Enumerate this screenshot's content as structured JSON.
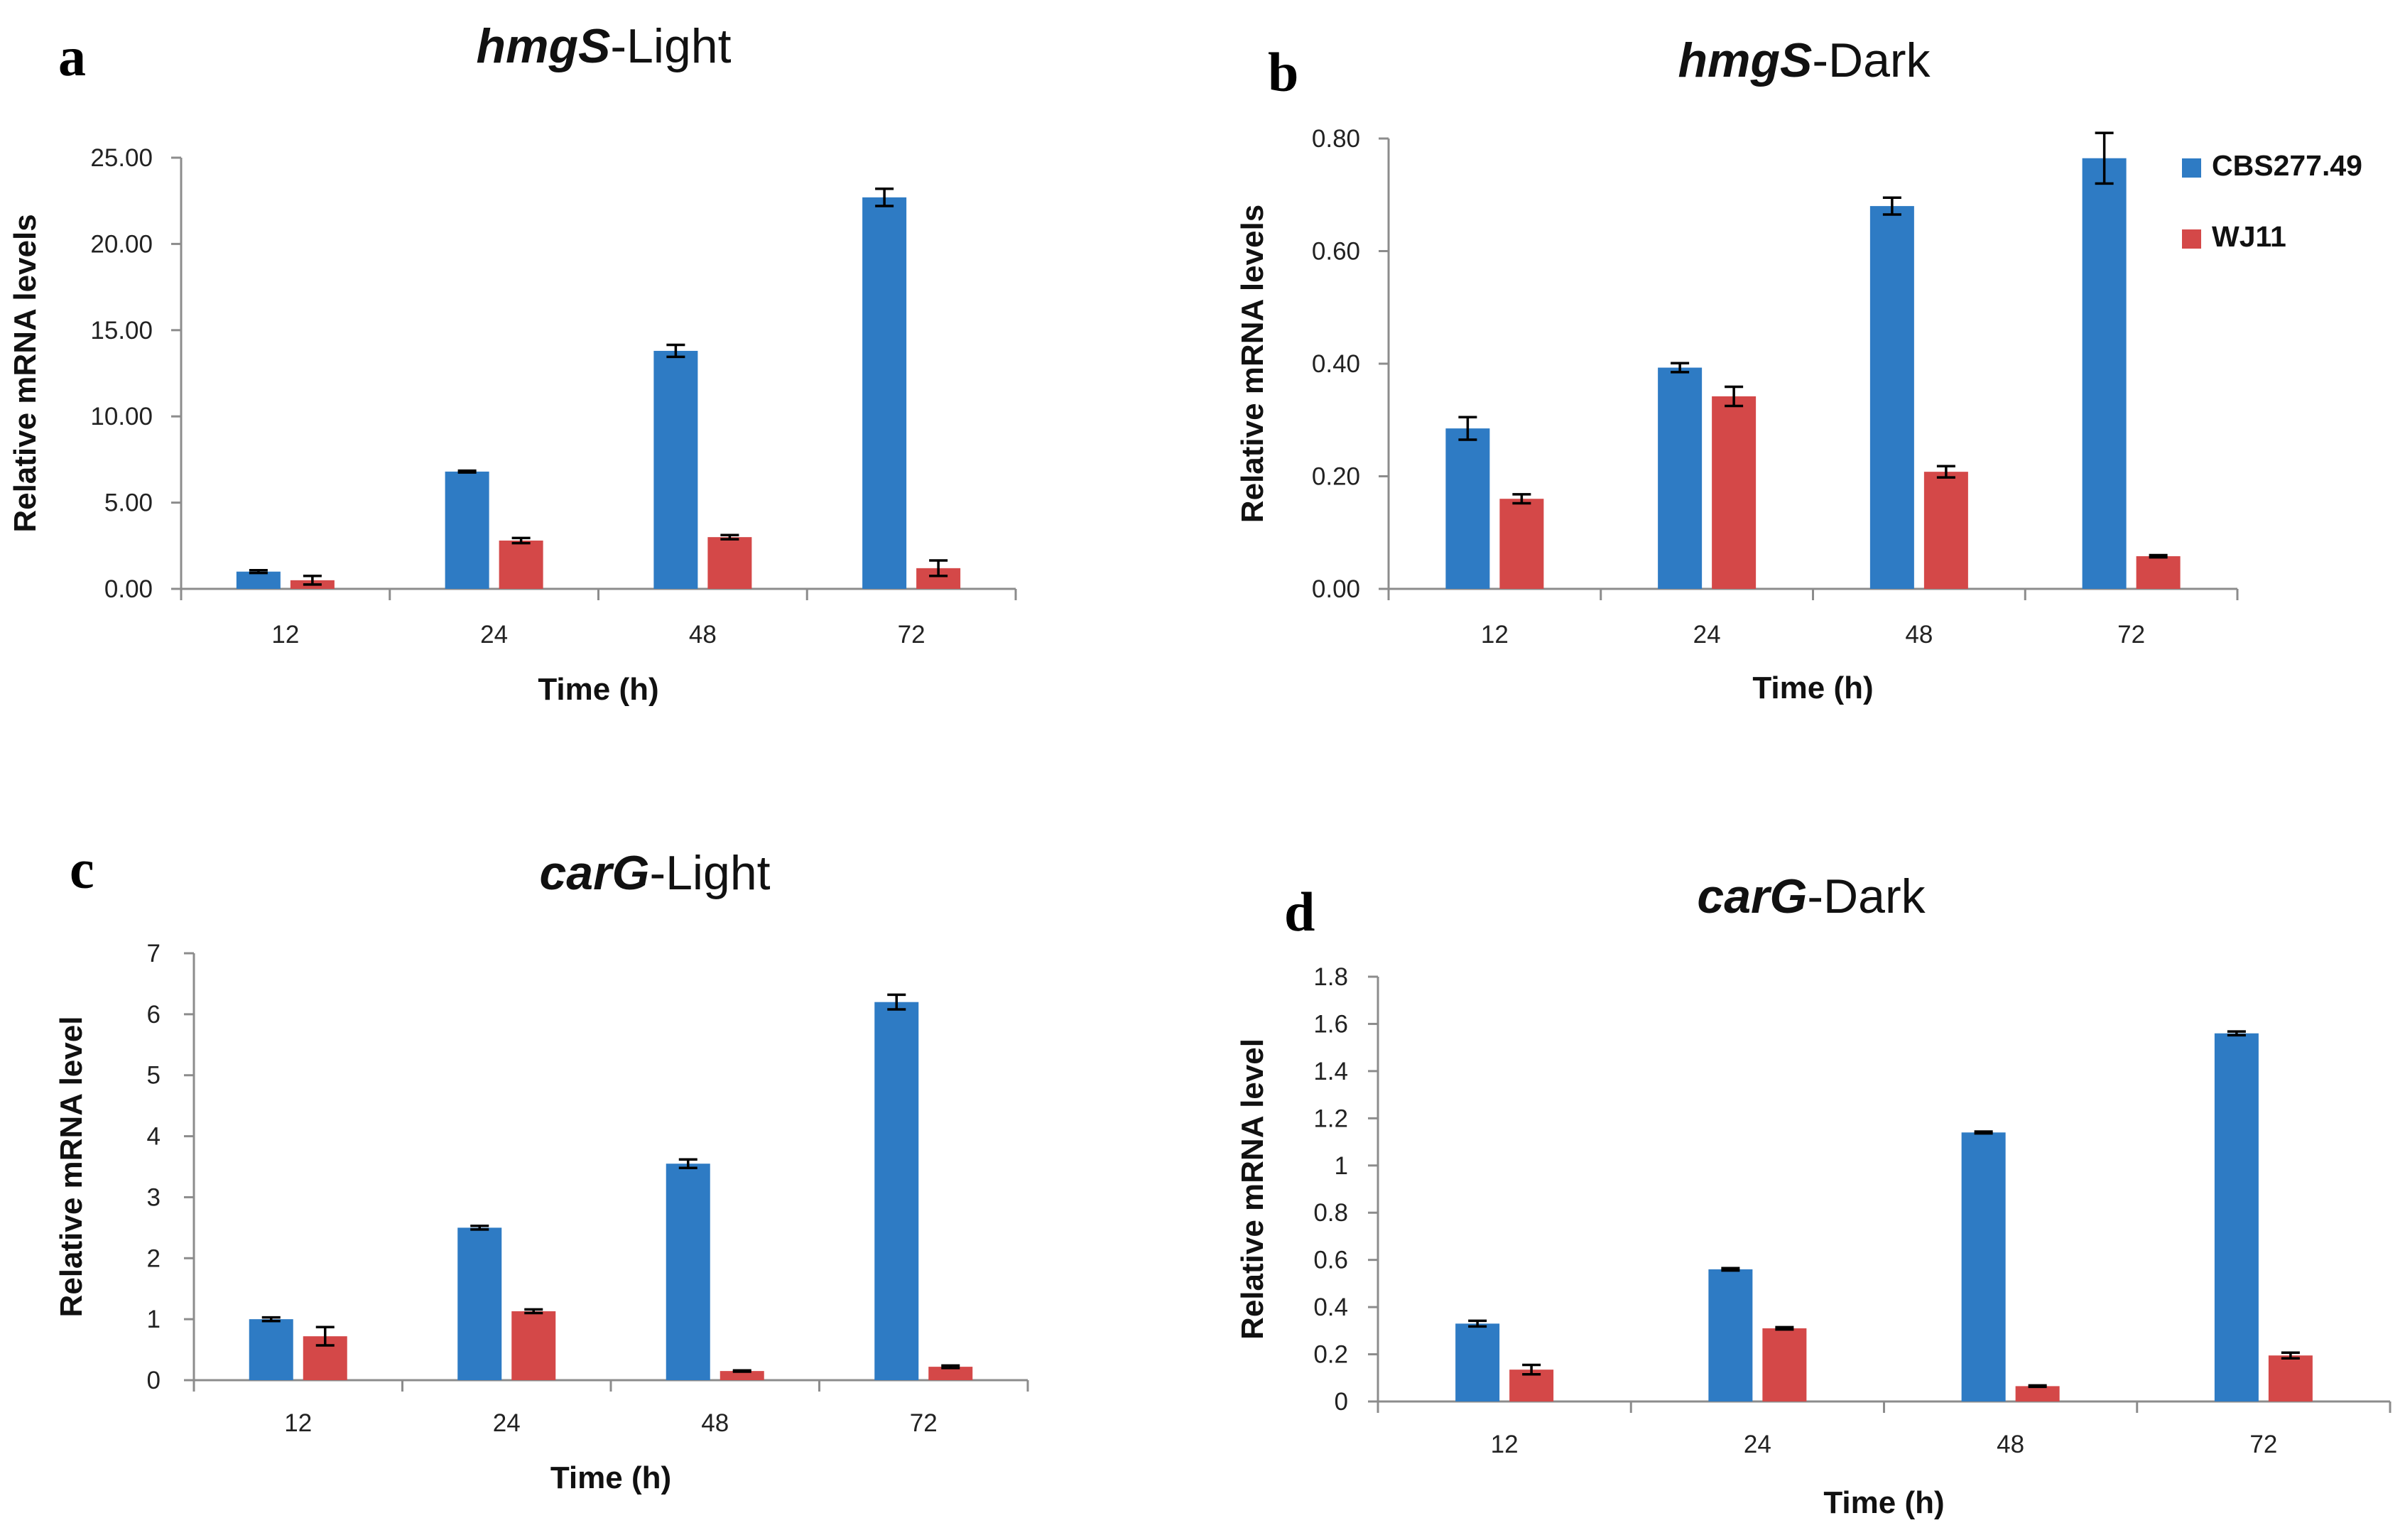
{
  "colors": {
    "series_1": "#2e7bc4",
    "series_2": "#d44848",
    "axis": "#8c8c8c",
    "errorbar": "#000000"
  },
  "legend": {
    "items": [
      "CBS277.49",
      "WJ11"
    ],
    "position": "top-right of panel b"
  },
  "chart_data": [
    {
      "type": "bar",
      "panel_letter": "a",
      "title_italic": "hmgS",
      "title_rest": "-Light",
      "xlabel": "Time (h)",
      "ylabel": "Relative mRNA levels",
      "categories": [
        "12",
        "24",
        "48",
        "72"
      ],
      "ylim": [
        0,
        25
      ],
      "yticks": [
        "0.00",
        "5.00",
        "10.00",
        "15.00",
        "20.00",
        "25.00"
      ],
      "series": [
        {
          "name": "CBS277.49",
          "values": [
            1.0,
            6.8,
            13.8,
            22.7
          ],
          "errors": [
            0.08,
            0.05,
            0.35,
            0.5
          ]
        },
        {
          "name": "WJ11",
          "values": [
            0.5,
            2.8,
            3.0,
            1.2
          ],
          "errors": [
            0.25,
            0.15,
            0.12,
            0.45
          ]
        }
      ]
    },
    {
      "type": "bar",
      "panel_letter": "b",
      "title_italic": "hmgS",
      "title_rest": "-Dark",
      "xlabel": "Time (h)",
      "ylabel": "Relative mRNA levels",
      "categories": [
        "12",
        "24",
        "48",
        "72"
      ],
      "ylim": [
        0,
        0.8
      ],
      "yticks": [
        "0.00",
        "0.20",
        "0.40",
        "0.60",
        "0.80"
      ],
      "series": [
        {
          "name": "CBS277.49",
          "values": [
            0.285,
            0.393,
            0.68,
            0.765
          ],
          "errors": [
            0.02,
            0.008,
            0.015,
            0.045
          ]
        },
        {
          "name": "WJ11",
          "values": [
            0.16,
            0.342,
            0.208,
            0.058
          ],
          "errors": [
            0.008,
            0.017,
            0.01,
            0.002
          ]
        }
      ]
    },
    {
      "type": "bar",
      "panel_letter": "c",
      "title_italic": "carG",
      "title_rest": "-Light",
      "xlabel": "Time (h)",
      "ylabel": "Relative mRNA  level",
      "categories": [
        "12",
        "24",
        "48",
        "72"
      ],
      "ylim": [
        0,
        7
      ],
      "yticks": [
        "0",
        "1",
        "2",
        "3",
        "4",
        "5",
        "6",
        "7"
      ],
      "series": [
        {
          "name": "CBS277.49",
          "values": [
            1.0,
            2.5,
            3.55,
            6.2
          ],
          "errors": [
            0.03,
            0.03,
            0.07,
            0.12
          ]
        },
        {
          "name": "WJ11",
          "values": [
            0.72,
            1.13,
            0.15,
            0.22
          ],
          "errors": [
            0.15,
            0.03,
            0.01,
            0.02
          ]
        }
      ]
    },
    {
      "type": "bar",
      "panel_letter": "d",
      "title_italic": "carG",
      "title_rest": "-Dark",
      "xlabel": "Time (h)",
      "ylabel": "Relative mRNA  level",
      "categories": [
        "12",
        "24",
        "48",
        "72"
      ],
      "ylim": [
        0,
        1.8
      ],
      "yticks": [
        "0",
        "0.2",
        "0.4",
        "0.6",
        "0.8",
        "1",
        "1.2",
        "1.4",
        "1.6",
        "1.8"
      ],
      "series": [
        {
          "name": "CBS277.49",
          "values": [
            0.33,
            0.56,
            1.14,
            1.56
          ],
          "errors": [
            0.012,
            0.005,
            0.004,
            0.008
          ]
        },
        {
          "name": "WJ11",
          "values": [
            0.135,
            0.31,
            0.065,
            0.195
          ],
          "errors": [
            0.02,
            0.005,
            0.003,
            0.012
          ]
        }
      ]
    }
  ]
}
